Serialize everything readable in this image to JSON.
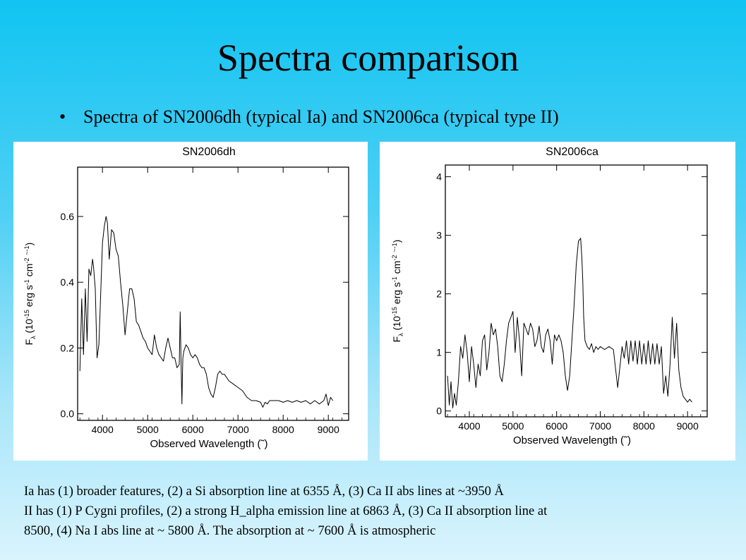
{
  "slide": {
    "title": "Spectra comparison",
    "bullet_marker": "•",
    "bullet": "Spectra of SN2006dh (typical Ia) and SN2006ca (typical type II)",
    "notes": [
      "Ia has (1) broader features, (2) a Si absorption line at 6355 Å, (3) Ca II abs lines at ~3950 Å",
      "II has (1) P Cygni profiles, (2) a strong H_alpha emission line at 6863 Å, (3) Ca II absorption line at",
      "8500, (4) Na I abs line at ~ 5800 Å. The absorption at ~ 7600 Å is atmospheric"
    ],
    "colors": {
      "background_top": "#11c4f2",
      "background_bottom": "#d9f4fd",
      "line": "#000000"
    }
  },
  "chart_data": [
    {
      "type": "line",
      "title": "SN2006dh",
      "xlabel": "Observed Wavelength (˜)",
      "ylabel": "F_λ (10⁻¹⁵ erg s⁻¹ cm⁻² ˜⁻¹)",
      "ylabel_parts": {
        "f": "F",
        "sub": "λ",
        "a": " (10",
        "exp1": "-15",
        "b": " erg s",
        "exp2": "-1",
        "c": " cm",
        "exp3": "-2",
        "d": " ",
        "exp4": "~-1",
        "e": ")"
      },
      "xlim": [
        3450,
        9450
      ],
      "ylim": [
        -0.02,
        0.75
      ],
      "xticks": [
        4000,
        5000,
        6000,
        7000,
        8000,
        9000
      ],
      "yticks": [
        0.0,
        0.2,
        0.4,
        0.6
      ],
      "ytick_labels": [
        "0.0",
        "0.2",
        "0.4",
        "0.6"
      ],
      "grid": false,
      "series": [
        {
          "x": [
            3500,
            3540,
            3580,
            3620,
            3660,
            3700,
            3740,
            3780,
            3800,
            3840,
            3880,
            3920,
            3960,
            4000,
            4040,
            4080,
            4110,
            4150,
            4200,
            4250,
            4300,
            4350,
            4400,
            4450,
            4500,
            4550,
            4600,
            4650,
            4700,
            4750,
            4800,
            4850,
            4900,
            4950,
            5000,
            5050,
            5100,
            5150,
            5200,
            5250,
            5300,
            5350,
            5400,
            5450,
            5500,
            5550,
            5600,
            5650,
            5700,
            5720,
            5740,
            5760,
            5770,
            5780,
            5800,
            5850,
            5900,
            5950,
            6000,
            6050,
            6100,
            6150,
            6200,
            6250,
            6300,
            6350,
            6400,
            6450,
            6500,
            6550,
            6600,
            6650,
            6700,
            6800,
            6900,
            7000,
            7100,
            7200,
            7300,
            7400,
            7500,
            7550,
            7600,
            7650,
            7700,
            7800,
            7900,
            8000,
            8100,
            8200,
            8300,
            8400,
            8500,
            8600,
            8700,
            8800,
            8900,
            8950,
            9000,
            9050,
            9100
          ],
          "y": [
            0.13,
            0.35,
            0.18,
            0.38,
            0.22,
            0.44,
            0.42,
            0.47,
            0.45,
            0.38,
            0.17,
            0.21,
            0.36,
            0.52,
            0.57,
            0.6,
            0.58,
            0.47,
            0.56,
            0.55,
            0.5,
            0.48,
            0.4,
            0.33,
            0.24,
            0.31,
            0.38,
            0.38,
            0.35,
            0.28,
            0.27,
            0.25,
            0.23,
            0.22,
            0.2,
            0.19,
            0.18,
            0.24,
            0.2,
            0.18,
            0.17,
            0.16,
            0.2,
            0.23,
            0.2,
            0.17,
            0.17,
            0.14,
            0.15,
            0.31,
            0.15,
            0.03,
            0.12,
            0.17,
            0.19,
            0.21,
            0.2,
            0.18,
            0.17,
            0.18,
            0.17,
            0.15,
            0.14,
            0.14,
            0.12,
            0.08,
            0.06,
            0.05,
            0.08,
            0.12,
            0.13,
            0.12,
            0.12,
            0.1,
            0.09,
            0.08,
            0.07,
            0.05,
            0.04,
            0.04,
            0.035,
            0.02,
            0.035,
            0.03,
            0.04,
            0.04,
            0.04,
            0.035,
            0.04,
            0.035,
            0.04,
            0.035,
            0.04,
            0.03,
            0.04,
            0.03,
            0.04,
            0.06,
            0.025,
            0.05,
            0.04
          ]
        }
      ]
    },
    {
      "type": "line",
      "title": "SN2006ca",
      "xlabel": "Observed Wavelength (˜)",
      "ylabel": "F_λ (10⁻¹⁵ erg s⁻¹ cm⁻² ˜⁻¹)",
      "ylabel_parts": {
        "f": "F",
        "sub": "λ",
        "a": " (10",
        "exp1": "-15",
        "b": " erg s",
        "exp2": "-1",
        "c": " cm",
        "exp3": "-2",
        "d": " ",
        "exp4": "~-1",
        "e": ")"
      },
      "xlim": [
        3450,
        9450
      ],
      "ylim": [
        -0.1,
        4.2
      ],
      "xticks": [
        4000,
        5000,
        6000,
        7000,
        8000,
        9000
      ],
      "yticks": [
        0,
        1,
        2,
        3,
        4
      ],
      "ytick_labels": [
        "0",
        "1",
        "2",
        "3",
        "4"
      ],
      "grid": false,
      "series": [
        {
          "x": [
            3500,
            3540,
            3580,
            3620,
            3660,
            3700,
            3750,
            3800,
            3850,
            3900,
            3950,
            4000,
            4050,
            4100,
            4150,
            4200,
            4250,
            4300,
            4350,
            4400,
            4450,
            4500,
            4550,
            4600,
            4650,
            4700,
            4750,
            4800,
            4850,
            4900,
            4950,
            5000,
            5050,
            5100,
            5150,
            5200,
            5250,
            5300,
            5350,
            5400,
            5450,
            5500,
            5550,
            5600,
            5650,
            5700,
            5750,
            5800,
            5850,
            5900,
            5950,
            6000,
            6050,
            6100,
            6150,
            6200,
            6250,
            6300,
            6350,
            6400,
            6450,
            6500,
            6550,
            6580,
            6600,
            6620,
            6650,
            6700,
            6750,
            6800,
            6850,
            6900,
            6950,
            7000,
            7100,
            7200,
            7300,
            7400,
            7500,
            7550,
            7600,
            7650,
            7700,
            7750,
            7800,
            7850,
            7900,
            7950,
            8000,
            8050,
            8100,
            8150,
            8200,
            8250,
            8300,
            8350,
            8400,
            8450,
            8500,
            8550,
            8600,
            8650,
            8700,
            8750,
            8800,
            8850,
            8900,
            8950,
            9000,
            9050,
            9100
          ],
          "y": [
            0.6,
            0.1,
            0.5,
            0.05,
            0.3,
            0.1,
            0.5,
            1.1,
            0.9,
            1.3,
            1.0,
            0.5,
            1.1,
            0.8,
            0.4,
            0.8,
            0.6,
            1.2,
            1.3,
            0.7,
            1.0,
            1.5,
            1.3,
            1.4,
            1.1,
            0.6,
            0.5,
            0.8,
            1.2,
            1.5,
            1.6,
            1.7,
            1.0,
            1.6,
            1.2,
            0.6,
            1.5,
            1.4,
            1.3,
            1.5,
            1.4,
            1.1,
            1.2,
            1.45,
            1.1,
            1.0,
            1.3,
            1.4,
            1.2,
            0.8,
            1.3,
            1.2,
            1.3,
            1.2,
            1.0,
            0.6,
            0.35,
            0.6,
            1.2,
            1.8,
            2.5,
            2.9,
            2.95,
            2.6,
            2.2,
            1.6,
            1.2,
            1.1,
            1.05,
            1.15,
            1.0,
            1.1,
            1.05,
            1.1,
            1.05,
            1.1,
            1.05,
            0.4,
            1.1,
            0.9,
            1.2,
            0.8,
            1.2,
            0.85,
            1.2,
            0.8,
            1.2,
            0.8,
            1.15,
            0.8,
            1.2,
            0.8,
            1.15,
            0.8,
            1.15,
            0.8,
            1.1,
            0.3,
            0.6,
            0.25,
            0.8,
            1.6,
            0.9,
            1.5,
            0.7,
            0.4,
            0.25,
            0.2,
            0.15,
            0.2,
            0.15
          ]
        }
      ]
    }
  ]
}
